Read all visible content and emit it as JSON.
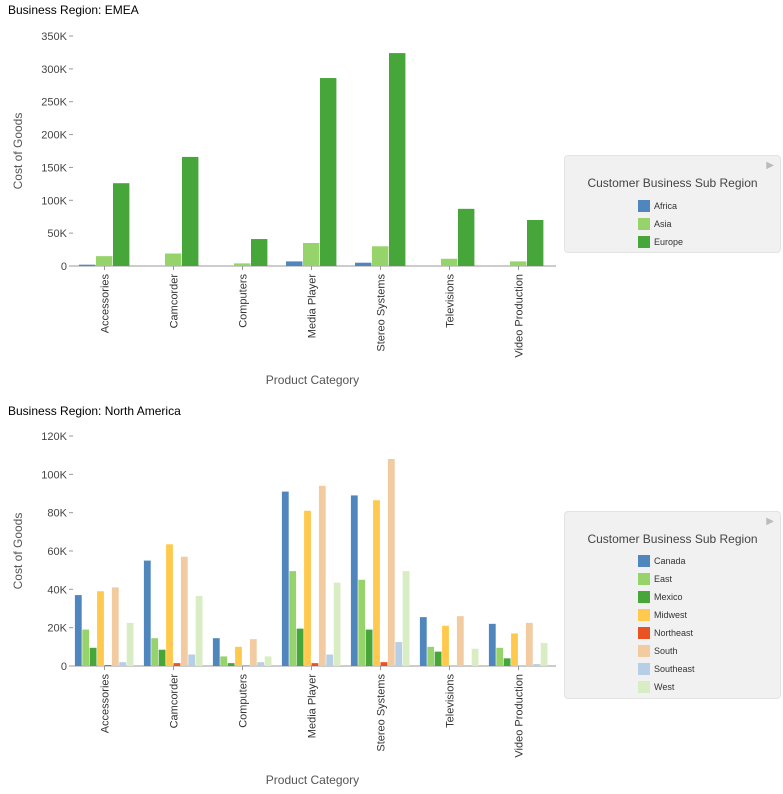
{
  "colors": {
    "Africa": "#4e86bd",
    "Asia": "#97d36b",
    "Europe": "#46a639",
    "Canada": "#4e86bd",
    "East": "#97d36b",
    "Mexico": "#46a639",
    "Midwest": "#ffc94e",
    "Northeast": "#ea5224",
    "South": "#f2cba1",
    "Southeast": "#b7cfe6",
    "West": "#d8edc3"
  },
  "chart_data": [
    {
      "type": "bar",
      "title": "Business Region: EMEA",
      "xlabel": "Product Category",
      "ylabel": "Cost of Goods",
      "ylim": [
        0,
        350000
      ],
      "yticks": [
        "0",
        "50K",
        "100K",
        "150K",
        "200K",
        "250K",
        "300K",
        "350K"
      ],
      "categories": [
        "Accessories",
        "Camcorder",
        "Computers",
        "Media Player",
        "Stereo Systems",
        "Televisions",
        "Video Production"
      ],
      "legend_title": "Customer Business Sub Region",
      "legend_position": "right",
      "series": [
        {
          "name": "Africa",
          "values": [
            2000,
            0,
            0,
            7000,
            5000,
            0,
            0
          ]
        },
        {
          "name": "Asia",
          "values": [
            15000,
            19000,
            4000,
            35000,
            30000,
            11000,
            7000
          ]
        },
        {
          "name": "Europe",
          "values": [
            126000,
            166000,
            41000,
            286000,
            324000,
            87000,
            70000
          ]
        }
      ]
    },
    {
      "type": "bar",
      "title": "Business Region: North America",
      "xlabel": "Product Category",
      "ylabel": "Cost of Goods",
      "ylim": [
        0,
        120000
      ],
      "yticks": [
        "0",
        "20K",
        "40K",
        "60K",
        "80K",
        "100K",
        "120K"
      ],
      "categories": [
        "Accessories",
        "Camcorder",
        "Computers",
        "Media Player",
        "Stereo Systems",
        "Televisions",
        "Video Production"
      ],
      "legend_title": "Customer Business Sub Region",
      "legend_position": "right",
      "series": [
        {
          "name": "Canada",
          "values": [
            37000,
            55000,
            14500,
            91000,
            89000,
            25500,
            22000
          ]
        },
        {
          "name": "East",
          "values": [
            19000,
            14500,
            5000,
            49500,
            45000,
            10000,
            9500
          ]
        },
        {
          "name": "Mexico",
          "values": [
            9500,
            8500,
            1500,
            19500,
            19000,
            7500,
            4000
          ]
        },
        {
          "name": "Midwest",
          "values": [
            39000,
            63500,
            10000,
            81000,
            86500,
            21000,
            17000
          ]
        },
        {
          "name": "Northeast",
          "values": [
            500,
            1500,
            300,
            1500,
            2000,
            0,
            0
          ]
        },
        {
          "name": "South",
          "values": [
            41000,
            57000,
            14000,
            94000,
            108000,
            26000,
            22500
          ]
        },
        {
          "name": "Southeast",
          "values": [
            2000,
            6000,
            2000,
            6000,
            12500,
            0,
            1000
          ]
        },
        {
          "name": "West",
          "values": [
            22500,
            36500,
            5000,
            43500,
            49500,
            9000,
            12000
          ]
        }
      ]
    }
  ]
}
